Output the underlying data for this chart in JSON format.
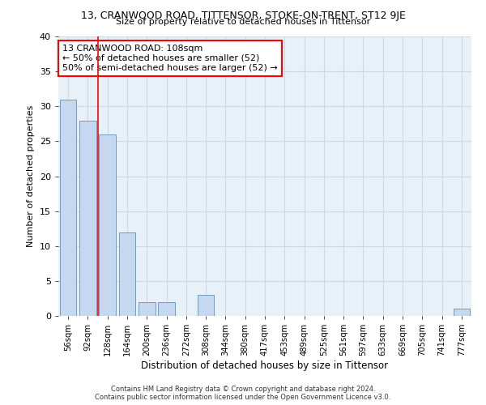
{
  "title1": "13, CRANWOOD ROAD, TITTENSOR, STOKE-ON-TRENT, ST12 9JE",
  "title2": "Size of property relative to detached houses in Tittensor",
  "xlabel": "Distribution of detached houses by size in Tittensor",
  "ylabel": "Number of detached properties",
  "categories": [
    "56sqm",
    "92sqm",
    "128sqm",
    "164sqm",
    "200sqm",
    "236sqm",
    "272sqm",
    "308sqm",
    "344sqm",
    "380sqm",
    "417sqm",
    "453sqm",
    "489sqm",
    "525sqm",
    "561sqm",
    "597sqm",
    "633sqm",
    "669sqm",
    "705sqm",
    "741sqm",
    "777sqm"
  ],
  "values": [
    31,
    28,
    26,
    12,
    2,
    2,
    0,
    3,
    0,
    0,
    0,
    0,
    0,
    0,
    0,
    0,
    0,
    0,
    0,
    0,
    1
  ],
  "bar_color": "#c5d8ef",
  "bar_edge_color": "#6a9ec5",
  "vline_x": 1.5,
  "vline_color": "red",
  "annotation_title": "13 CRANWOOD ROAD: 108sqm",
  "annotation_line1": "← 50% of detached houses are smaller (52)",
  "annotation_line2": "50% of semi-detached houses are larger (52) →",
  "annotation_box_facecolor": "white",
  "annotation_box_edgecolor": "red",
  "ylim": [
    0,
    40
  ],
  "yticks": [
    0,
    5,
    10,
    15,
    20,
    25,
    30,
    35,
    40
  ],
  "grid_color": "#d0d8e8",
  "bg_color": "#e8f0f8",
  "footer1": "Contains HM Land Registry data © Crown copyright and database right 2024.",
  "footer2": "Contains public sector information licensed under the Open Government Licence v3.0."
}
